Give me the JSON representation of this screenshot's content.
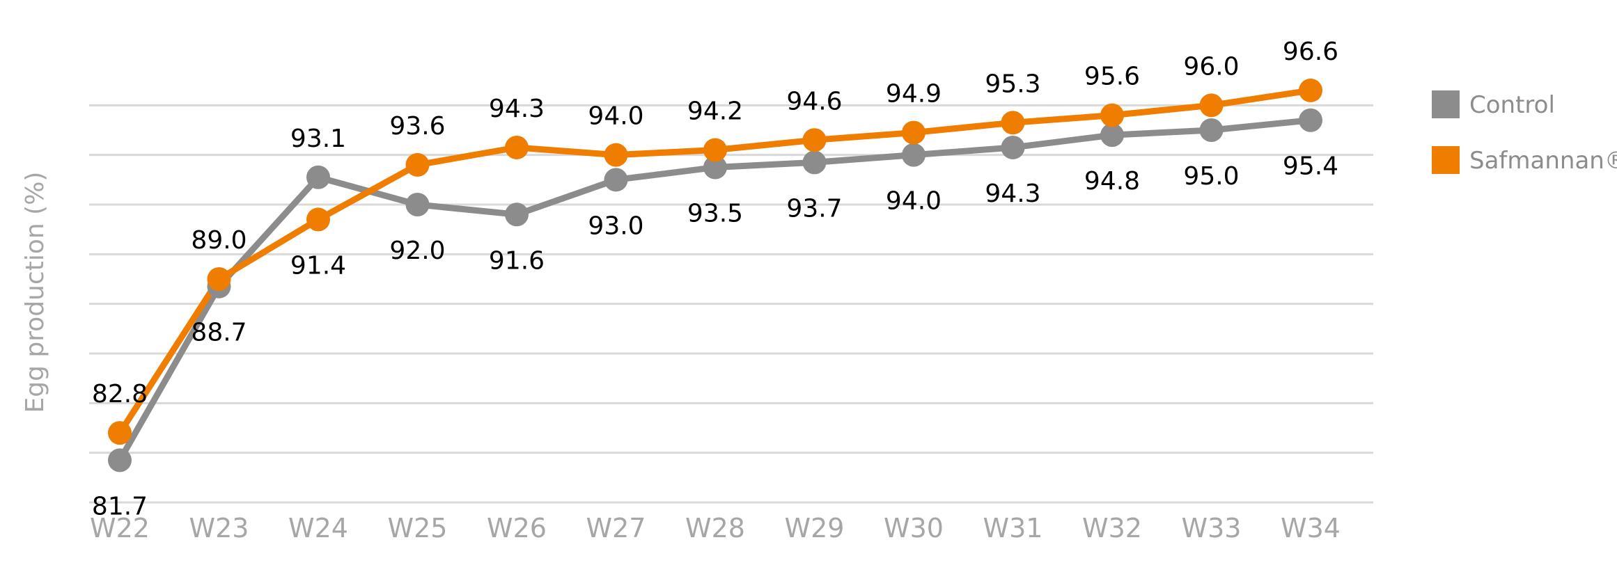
{
  "chart_data": {
    "type": "line",
    "ylabel": "Egg production (%)",
    "categories": [
      "W22",
      "W23",
      "W24",
      "W25",
      "W26",
      "W27",
      "W28",
      "W29",
      "W30",
      "W31",
      "W32",
      "W33",
      "W34"
    ],
    "ylim": [
      80,
      98
    ],
    "grid": true,
    "legend_placement": "right",
    "series": [
      {
        "name": "Control",
        "color": "#8c8c8c",
        "values": [
          81.7,
          88.7,
          93.1,
          92.0,
          91.6,
          93.0,
          93.5,
          93.7,
          94.0,
          94.3,
          94.8,
          95.0,
          95.4
        ],
        "labels": [
          "81.7",
          "88.7",
          "93.1",
          "92.0",
          "91.6",
          "93.0",
          "93.5",
          "93.7",
          "94.0",
          "94.3",
          "94.8",
          "95.0",
          "95.4"
        ]
      },
      {
        "name": "Safmannan®",
        "color": "#ef7d00",
        "values": [
          82.8,
          89.0,
          91.4,
          93.6,
          94.3,
          94.0,
          94.2,
          94.6,
          94.9,
          95.3,
          95.6,
          96.0,
          96.6
        ],
        "labels": [
          "82.8",
          "89.0",
          "91.4",
          "93.6",
          "94.3",
          "94.0",
          "94.2",
          "94.6",
          "94.9",
          "95.3",
          "95.6",
          "96.0",
          "96.6"
        ]
      }
    ]
  }
}
